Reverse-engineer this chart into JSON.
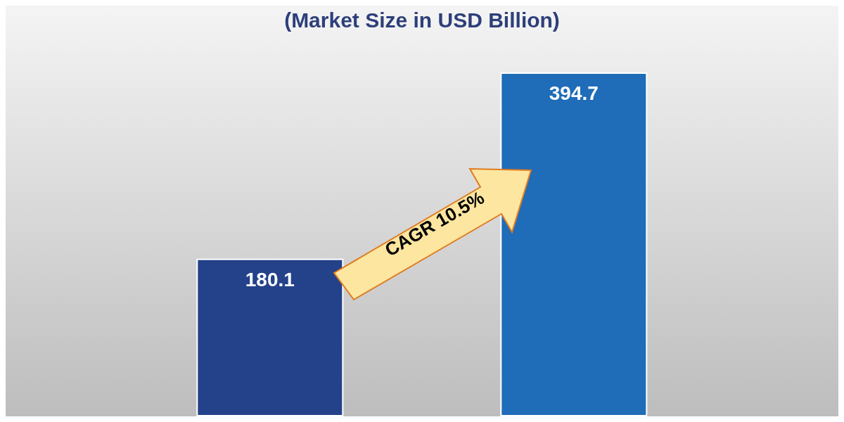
{
  "chart_data": {
    "type": "bar",
    "title": "(Market Size in USD Billion)",
    "categories": [
      null,
      null
    ],
    "values": [
      180.1,
      394.7
    ],
    "colors": [
      "#24428a",
      "#1f6cb8"
    ],
    "data_labels": true,
    "annotations": [
      "CAGR 10.5%"
    ]
  }
}
